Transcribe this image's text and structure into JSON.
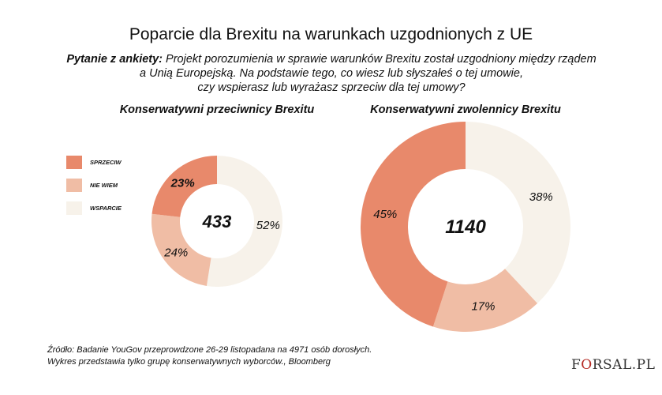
{
  "title": "Poparcie dla Brexitu na warunkach uzgodnionych z UE",
  "question": {
    "label": "Pytanie z ankiety:",
    "line1": " Projekt porozumienia w sprawie warunków Brexitu został uzgodniony między rządem",
    "line2": "a Unią Europejską. Na podstawie tego, co wiesz lub słyszałeś o tej umowie,",
    "line3": "czy wspierasz lub wyrażasz sprzeciw dla tej umowy?"
  },
  "colors": {
    "sprzeciw": "#E8896B",
    "nie_wiem": "#F0BDA5",
    "wsparcie": "#F7F2EA"
  },
  "chart_data": [
    {
      "type": "pie",
      "donut": true,
      "title": "Konserwatywni przeciwnicy Brexitu",
      "center_label": "433",
      "categories": [
        "WSPARCIE",
        "NIE WIEM",
        "SPRZECIW"
      ],
      "values": [
        52,
        24,
        23
      ],
      "labels": [
        "52%",
        "24%",
        "23%"
      ],
      "legend": "left"
    },
    {
      "type": "pie",
      "donut": true,
      "title": "Konserwatywni zwolennicy Brexitu",
      "center_label": "1140",
      "categories": [
        "WSPARCIE",
        "NIE WIEM",
        "SPRZECIW"
      ],
      "values": [
        38,
        17,
        45
      ],
      "labels": [
        "38%",
        "17%",
        "45%"
      ]
    }
  ],
  "legend": [
    "SPRZECIW",
    "NIE WIEM",
    "WSPARCIE"
  ],
  "source": {
    "line1": "Źródło: Badanie YouGov przeprowdzone 26-29 listopadana na 4971 osób dorosłych.",
    "line2": "Wykres przedstawia tylko grupę konserwatywnych wyborców., Bloomberg"
  },
  "logo": {
    "pre": "F",
    "o": "O",
    "post": "RSAL.PL"
  }
}
